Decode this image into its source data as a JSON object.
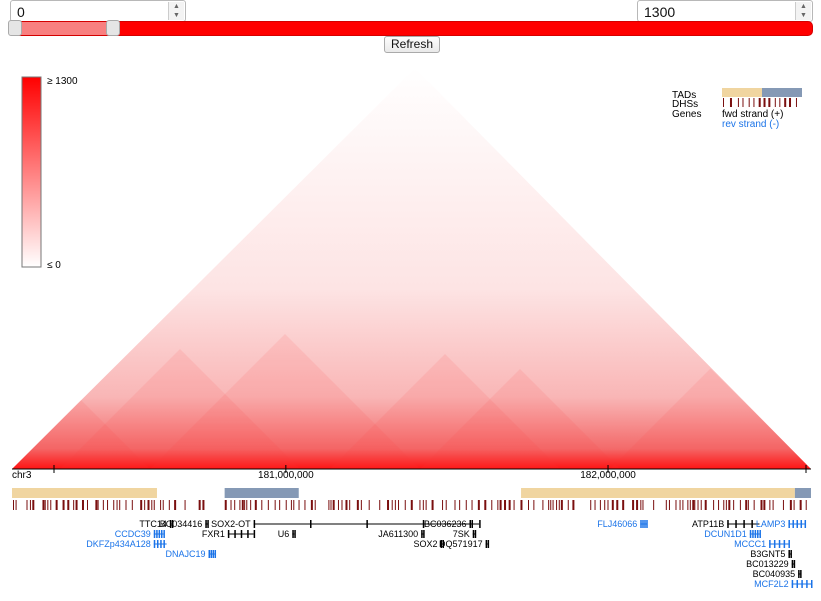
{
  "controls": {
    "min_value": "0",
    "max_value": "1300",
    "slider_low_fraction": 0.13,
    "refresh_label": "Refresh"
  },
  "colorbar": {
    "max_label": "≥ 1300",
    "min_label": "≤ 0",
    "colors": [
      "#ffffff",
      "#ff0000"
    ]
  },
  "legend": {
    "tads": "TADs",
    "dhss": "DHSs",
    "genes": "Genes",
    "fwd": "fwd strand (+)",
    "rev": "rev strand (-)",
    "tad_colors": [
      "#f0d5a0",
      "#8599b5"
    ],
    "fwd_color": "#000000",
    "rev_color": "#1a73e8"
  },
  "axis": {
    "chrom": "chr3",
    "start": 180150000,
    "end": 182630000,
    "ticks": [
      {
        "pos": 181000000,
        "label": "181,000,000"
      },
      {
        "pos": 182000000,
        "label": "182,000,000"
      }
    ]
  },
  "tads": [
    {
      "start": 180150000,
      "end": 180600000,
      "color": "#f0d5a0"
    },
    {
      "start": 180810000,
      "end": 181040000,
      "color": "#8599b5"
    },
    {
      "start": 181730000,
      "end": 182580000,
      "color": "#f0d5a0"
    },
    {
      "start": 182580000,
      "end": 182630000,
      "color": "#8599b5"
    }
  ],
  "genes": [
    {
      "name": "TTC14",
      "strand": "+",
      "start": 180640000,
      "end": 180650000,
      "row": 0
    },
    {
      "name": "BC034416",
      "strand": "+",
      "start": 180750000,
      "end": 180760000,
      "row": 0
    },
    {
      "name": "SOX2-OT",
      "strand": "+",
      "start": 180900000,
      "end": 181600000,
      "row": 0
    },
    {
      "name": "BC036236",
      "strand": "+",
      "start": 181570000,
      "end": 181580000,
      "row": 0
    },
    {
      "name": "FLJ46066",
      "strand": "-",
      "start": 182100000,
      "end": 182120000,
      "row": 0
    },
    {
      "name": "ATP11B",
      "strand": "+",
      "start": 182370000,
      "end": 182470000,
      "row": 0
    },
    {
      "name": "LAMP3",
      "strand": "-",
      "start": 182560000,
      "end": 182610000,
      "row": 0
    },
    {
      "name": "CCDC39",
      "strand": "-",
      "start": 180590000,
      "end": 180620000,
      "row": 1
    },
    {
      "name": "FXR1",
      "strand": "+",
      "start": 180820000,
      "end": 180900000,
      "row": 1
    },
    {
      "name": "U6",
      "strand": "+",
      "start": 181020000,
      "end": 181025000,
      "row": 1
    },
    {
      "name": "JA611300",
      "strand": "+",
      "start": 181420000,
      "end": 181430000,
      "row": 1
    },
    {
      "name": "7SK",
      "strand": "+",
      "start": 181580000,
      "end": 181590000,
      "row": 1
    },
    {
      "name": "DCUN1D1",
      "strand": "-",
      "start": 182440000,
      "end": 182470000,
      "row": 1
    },
    {
      "name": "DKFZp434A128",
      "strand": "-",
      "start": 180590000,
      "end": 180630000,
      "row": 2
    },
    {
      "name": "SOX2",
      "strand": "+",
      "start": 181480000,
      "end": 181485000,
      "row": 2
    },
    {
      "name": "DQ571917",
      "strand": "+",
      "start": 181620000,
      "end": 181625000,
      "row": 2
    },
    {
      "name": "MCCC1",
      "strand": "-",
      "start": 182500000,
      "end": 182560000,
      "row": 2
    },
    {
      "name": "DNAJC19",
      "strand": "-",
      "start": 180760000,
      "end": 180780000,
      "row": 3
    },
    {
      "name": "B3GNT5",
      "strand": "+",
      "start": 182560000,
      "end": 182570000,
      "row": 3
    },
    {
      "name": "BC013229",
      "strand": "+",
      "start": 182570000,
      "end": 182580000,
      "row": 4
    },
    {
      "name": "BC040935",
      "strand": "+",
      "start": 182590000,
      "end": 182600000,
      "row": 5
    },
    {
      "name": "MCF2L2",
      "strand": "-",
      "start": 182570000,
      "end": 182630000,
      "row": 6
    }
  ]
}
